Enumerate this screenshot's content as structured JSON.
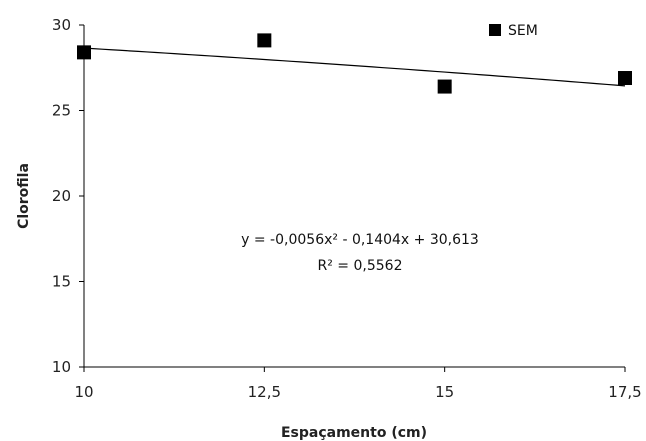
{
  "chart_data": {
    "type": "scatter",
    "x_ticks": [
      "10",
      "12,5",
      "15",
      "17,5"
    ],
    "y_ticks": [
      "10",
      "15",
      "20",
      "25",
      "30"
    ],
    "xlim": [
      10,
      17.5
    ],
    "ylim": [
      10,
      30
    ],
    "xlabel": "Espaçamento (cm)",
    "ylabel": "Clorofila",
    "series": [
      {
        "name": "SEM",
        "marker": "square",
        "color": "#000000",
        "x": [
          10,
          12.5,
          15,
          17.5
        ],
        "y": [
          28.4,
          29.1,
          26.4,
          26.9
        ]
      }
    ],
    "trendline": {
      "type": "polynomial-2",
      "coefficients": {
        "a": -0.0056,
        "b": -0.1404,
        "c": 30.613
      },
      "color": "#000000"
    },
    "equation_line1": "y = -0,0056x² - 0,1404x + 30,613",
    "equation_line2": "R² = 0,5562",
    "legend_position": "top-right",
    "grid": false
  }
}
